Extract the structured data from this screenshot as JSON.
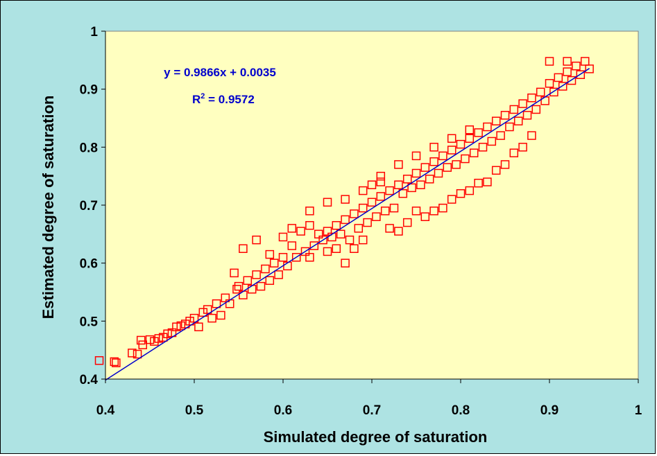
{
  "chart_data": {
    "type": "scatter",
    "title": "",
    "xlabel": "Simulated degree of saturation",
    "ylabel": "Estimated degree of saturation",
    "xlim": [
      0.4,
      1
    ],
    "ylim": [
      0.4,
      1
    ],
    "xticks": [
      "0.4",
      "0.5",
      "0.6",
      "0.7",
      "0.8",
      "0.9",
      "1"
    ],
    "yticks": [
      "0.4",
      "0.5",
      "0.6",
      "0.7",
      "0.8",
      "0.9",
      "1"
    ],
    "grid": false,
    "legend": "none",
    "annotation": {
      "equation": "y = 0.9866x + 0.0035",
      "r2_label": "R",
      "r2_sup": "2",
      "r2_value": " = 0.9572"
    },
    "trendline": {
      "slope": 0.9866,
      "intercept": 0.0035,
      "x_start": 0.4,
      "x_end": 0.945
    },
    "colors": {
      "plot_area": "#ffffc0",
      "outer": "#aee3e3",
      "markers": "#ff0000",
      "trendline": "#0000cc"
    },
    "marker": "open-square",
    "series": [
      {
        "points": [
          [
            0.393,
            0.432
          ],
          [
            0.41,
            0.43
          ],
          [
            0.412,
            0.428
          ],
          [
            0.43,
            0.445
          ],
          [
            0.436,
            0.443
          ],
          [
            0.44,
            0.467
          ],
          [
            0.442,
            0.459
          ],
          [
            0.45,
            0.468
          ],
          [
            0.455,
            0.465
          ],
          [
            0.46,
            0.47
          ],
          [
            0.465,
            0.472
          ],
          [
            0.47,
            0.478
          ],
          [
            0.475,
            0.48
          ],
          [
            0.48,
            0.49
          ],
          [
            0.485,
            0.492
          ],
          [
            0.49,
            0.495
          ],
          [
            0.495,
            0.5
          ],
          [
            0.5,
            0.505
          ],
          [
            0.505,
            0.49
          ],
          [
            0.51,
            0.515
          ],
          [
            0.515,
            0.52
          ],
          [
            0.52,
            0.505
          ],
          [
            0.525,
            0.53
          ],
          [
            0.53,
            0.51
          ],
          [
            0.535,
            0.54
          ],
          [
            0.54,
            0.53
          ],
          [
            0.545,
            0.583
          ],
          [
            0.548,
            0.555
          ],
          [
            0.55,
            0.56
          ],
          [
            0.555,
            0.545
          ],
          [
            0.56,
            0.57
          ],
          [
            0.565,
            0.555
          ],
          [
            0.57,
            0.58
          ],
          [
            0.575,
            0.56
          ],
          [
            0.58,
            0.59
          ],
          [
            0.585,
            0.57
          ],
          [
            0.59,
            0.6
          ],
          [
            0.595,
            0.58
          ],
          [
            0.6,
            0.61
          ],
          [
            0.605,
            0.595
          ],
          [
            0.61,
            0.63
          ],
          [
            0.615,
            0.61
          ],
          [
            0.62,
            0.655
          ],
          [
            0.625,
            0.62
          ],
          [
            0.63,
            0.665
          ],
          [
            0.635,
            0.63
          ],
          [
            0.64,
            0.65
          ],
          [
            0.645,
            0.64
          ],
          [
            0.65,
            0.655
          ],
          [
            0.655,
            0.645
          ],
          [
            0.66,
            0.665
          ],
          [
            0.665,
            0.65
          ],
          [
            0.67,
            0.675
          ],
          [
            0.675,
            0.64
          ],
          [
            0.68,
            0.685
          ],
          [
            0.685,
            0.66
          ],
          [
            0.69,
            0.695
          ],
          [
            0.695,
            0.67
          ],
          [
            0.7,
            0.705
          ],
          [
            0.705,
            0.68
          ],
          [
            0.71,
            0.715
          ],
          [
            0.715,
            0.69
          ],
          [
            0.72,
            0.725
          ],
          [
            0.725,
            0.695
          ],
          [
            0.73,
            0.735
          ],
          [
            0.735,
            0.72
          ],
          [
            0.74,
            0.745
          ],
          [
            0.745,
            0.73
          ],
          [
            0.75,
            0.755
          ],
          [
            0.755,
            0.735
          ],
          [
            0.76,
            0.765
          ],
          [
            0.765,
            0.745
          ],
          [
            0.77,
            0.775
          ],
          [
            0.775,
            0.755
          ],
          [
            0.78,
            0.785
          ],
          [
            0.785,
            0.765
          ],
          [
            0.79,
            0.795
          ],
          [
            0.795,
            0.77
          ],
          [
            0.8,
            0.805
          ],
          [
            0.805,
            0.78
          ],
          [
            0.81,
            0.815
          ],
          [
            0.815,
            0.79
          ],
          [
            0.82,
            0.825
          ],
          [
            0.825,
            0.8
          ],
          [
            0.83,
            0.835
          ],
          [
            0.835,
            0.81
          ],
          [
            0.84,
            0.845
          ],
          [
            0.845,
            0.82
          ],
          [
            0.85,
            0.855
          ],
          [
            0.855,
            0.835
          ],
          [
            0.86,
            0.865
          ],
          [
            0.865,
            0.845
          ],
          [
            0.87,
            0.875
          ],
          [
            0.875,
            0.855
          ],
          [
            0.88,
            0.885
          ],
          [
            0.885,
            0.865
          ],
          [
            0.89,
            0.895
          ],
          [
            0.895,
            0.88
          ],
          [
            0.9,
            0.91
          ],
          [
            0.905,
            0.895
          ],
          [
            0.91,
            0.92
          ],
          [
            0.915,
            0.905
          ],
          [
            0.92,
            0.93
          ],
          [
            0.925,
            0.915
          ],
          [
            0.93,
            0.94
          ],
          [
            0.935,
            0.925
          ],
          [
            0.94,
            0.948
          ],
          [
            0.945,
            0.935
          ],
          [
            0.9,
            0.948
          ],
          [
            0.92,
            0.948
          ],
          [
            0.555,
            0.625
          ],
          [
            0.57,
            0.64
          ],
          [
            0.585,
            0.615
          ],
          [
            0.6,
            0.645
          ],
          [
            0.61,
            0.66
          ],
          [
            0.63,
            0.61
          ],
          [
            0.65,
            0.62
          ],
          [
            0.66,
            0.625
          ],
          [
            0.67,
            0.6
          ],
          [
            0.68,
            0.625
          ],
          [
            0.69,
            0.64
          ],
          [
            0.7,
            0.735
          ],
          [
            0.71,
            0.74
          ],
          [
            0.72,
            0.66
          ],
          [
            0.73,
            0.655
          ],
          [
            0.74,
            0.67
          ],
          [
            0.75,
            0.69
          ],
          [
            0.76,
            0.68
          ],
          [
            0.77,
            0.69
          ],
          [
            0.78,
            0.695
          ],
          [
            0.79,
            0.71
          ],
          [
            0.8,
            0.72
          ],
          [
            0.81,
            0.725
          ],
          [
            0.82,
            0.738
          ],
          [
            0.83,
            0.74
          ],
          [
            0.84,
            0.76
          ],
          [
            0.85,
            0.77
          ],
          [
            0.86,
            0.79
          ],
          [
            0.87,
            0.8
          ],
          [
            0.88,
            0.82
          ],
          [
            0.63,
            0.69
          ],
          [
            0.65,
            0.705
          ],
          [
            0.67,
            0.71
          ],
          [
            0.69,
            0.725
          ],
          [
            0.71,
            0.75
          ],
          [
            0.73,
            0.77
          ],
          [
            0.75,
            0.785
          ],
          [
            0.77,
            0.8
          ],
          [
            0.79,
            0.815
          ],
          [
            0.81,
            0.83
          ]
        ]
      }
    ]
  }
}
